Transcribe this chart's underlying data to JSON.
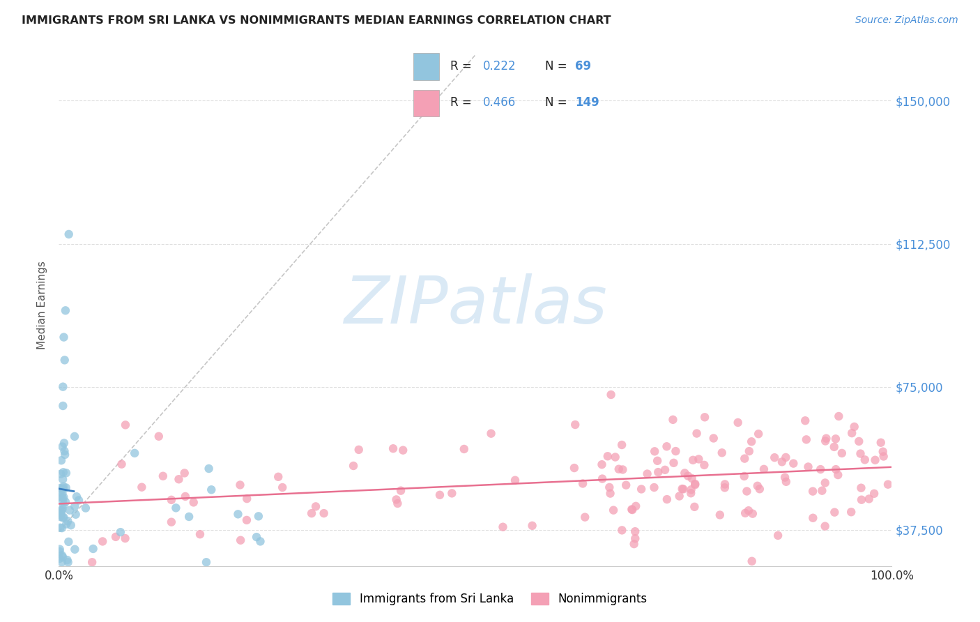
{
  "title": "IMMIGRANTS FROM SRI LANKA VS NONIMMIGRANTS MEDIAN EARNINGS CORRELATION CHART",
  "source": "Source: ZipAtlas.com",
  "ylabel": "Median Earnings",
  "xlim": [
    0,
    1
  ],
  "ylim": [
    28000,
    165000
  ],
  "ytick_labels": [
    "$37,500",
    "$75,000",
    "$112,500",
    "$150,000"
  ],
  "ytick_values": [
    37500,
    75000,
    112500,
    150000
  ],
  "blue_R": "0.222",
  "blue_N": "69",
  "pink_R": "0.466",
  "pink_N": "149",
  "blue_color": "#92C5DE",
  "pink_color": "#F4A0B5",
  "blue_line_color": "#3A7FC1",
  "pink_line_color": "#E87090",
  "gray_dash_color": "#C0C0C0",
  "background_color": "#ffffff",
  "grid_color": "#d8d8d8",
  "watermark_color": "#BDD7EE",
  "watermark_text": "ZIPatlas"
}
